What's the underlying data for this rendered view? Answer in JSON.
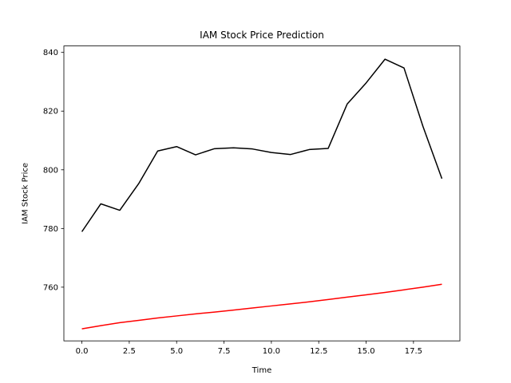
{
  "chart_data": {
    "type": "line",
    "title": "IAM Stock Price Prediction",
    "xlabel": "Time",
    "ylabel": "IAM Stock Price",
    "xlim": [
      -0.95,
      19.95
    ],
    "ylim": [
      741.7,
      842.2
    ],
    "xticks": [
      0.0,
      2.5,
      5.0,
      7.5,
      10.0,
      12.5,
      15.0,
      17.5
    ],
    "xtick_labels": [
      "0.0",
      "2.5",
      "5.0",
      "7.5",
      "10.0",
      "12.5",
      "15.0",
      "17.5"
    ],
    "yticks": [
      760,
      780,
      800,
      820,
      840
    ],
    "ytick_labels": [
      "760",
      "780",
      "800",
      "820",
      "840"
    ],
    "grid": false,
    "x": [
      0,
      1,
      2,
      3,
      4,
      5,
      6,
      7,
      8,
      9,
      10,
      11,
      12,
      13,
      14,
      15,
      16,
      17,
      18,
      19
    ],
    "series": [
      {
        "color": "#000000",
        "values": [
          778.9,
          788.4,
          786.2,
          795.3,
          806.4,
          807.9,
          805.1,
          807.2,
          807.5,
          807.1,
          805.9,
          805.2,
          806.9,
          807.3,
          822.4,
          829.6,
          837.7,
          834.7,
          814.8,
          797.0
        ]
      },
      {
        "color": "#ff0000",
        "values": [
          745.8,
          746.9,
          747.9,
          748.7,
          749.5,
          750.2,
          750.9,
          751.5,
          752.2,
          752.9,
          753.6,
          754.3,
          755.0,
          755.8,
          756.6,
          757.4,
          758.2,
          759.1,
          760.0,
          761.0
        ]
      }
    ]
  }
}
